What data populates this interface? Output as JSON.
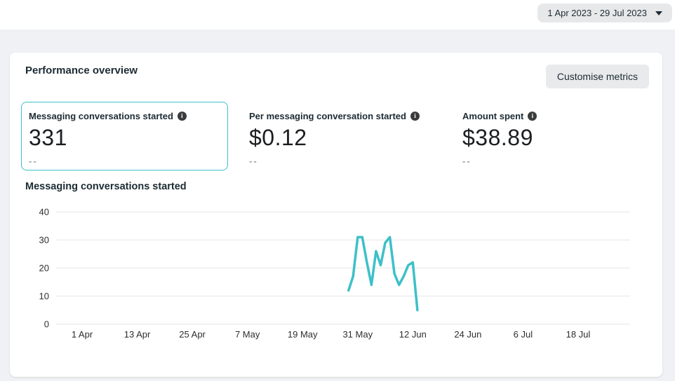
{
  "colors": {
    "accent": "#3dc0c8",
    "page_bg": "#f0f1f4",
    "card_bg": "#ffffff",
    "button_bg": "#e9eaec",
    "text": "#1c2b33",
    "muted": "#9b9ea3",
    "gridline": "#e4e6ea"
  },
  "topbar": {
    "date_range": "1 Apr 2023 - 29 Jul 2023"
  },
  "panel": {
    "title": "Performance overview",
    "customise_button": "Customise metrics"
  },
  "metrics": [
    {
      "label": "Messaging conversations started",
      "value": "331",
      "sub": "--",
      "selected": true
    },
    {
      "label": "Per messaging conversation started",
      "value": "$0.12",
      "sub": "--",
      "selected": false
    },
    {
      "label": "Amount spent",
      "value": "$38.89",
      "sub": "--",
      "selected": false
    }
  ],
  "chart_data": {
    "type": "line",
    "title": "Messaging conversations started",
    "xlabel": "",
    "ylabel": "",
    "grid": true,
    "legend": false,
    "x_axis": {
      "start_label": "1 Apr",
      "end_label": "29 Jul",
      "ticks": [
        {
          "label": "1 Apr",
          "day": 0
        },
        {
          "label": "13 Apr",
          "day": 12
        },
        {
          "label": "25 Apr",
          "day": 24
        },
        {
          "label": "7 May",
          "day": 36
        },
        {
          "label": "19 May",
          "day": 48
        },
        {
          "label": "31 May",
          "day": 60
        },
        {
          "label": "12 Jun",
          "day": 72
        },
        {
          "label": "24 Jun",
          "day": 84
        },
        {
          "label": "6 Jul",
          "day": 96
        },
        {
          "label": "18 Jul",
          "day": 108
        }
      ]
    },
    "y_axis": {
      "min": 0,
      "max": 40,
      "ticks": [
        0,
        10,
        20,
        30,
        40
      ]
    },
    "series": [
      {
        "name": "Messaging conversations started",
        "color": "#3dc0c8",
        "points": [
          {
            "date": "29 May",
            "day": 58,
            "value": 12
          },
          {
            "date": "30 May",
            "day": 59,
            "value": 17
          },
          {
            "date": "31 May",
            "day": 60,
            "value": 31
          },
          {
            "date": "1 Jun",
            "day": 61,
            "value": 31
          },
          {
            "date": "2 Jun",
            "day": 62,
            "value": 22
          },
          {
            "date": "3 Jun",
            "day": 63,
            "value": 14
          },
          {
            "date": "4 Jun",
            "day": 64,
            "value": 26
          },
          {
            "date": "5 Jun",
            "day": 65,
            "value": 21
          },
          {
            "date": "6 Jun",
            "day": 66,
            "value": 29
          },
          {
            "date": "7 Jun",
            "day": 67,
            "value": 31
          },
          {
            "date": "8 Jun",
            "day": 68,
            "value": 18
          },
          {
            "date": "9 Jun",
            "day": 69,
            "value": 14
          },
          {
            "date": "10 Jun",
            "day": 70,
            "value": 17
          },
          {
            "date": "11 Jun",
            "day": 71,
            "value": 21
          },
          {
            "date": "12 Jun",
            "day": 72,
            "value": 22
          },
          {
            "date": "13 Jun",
            "day": 73,
            "value": 5
          }
        ]
      }
    ]
  }
}
